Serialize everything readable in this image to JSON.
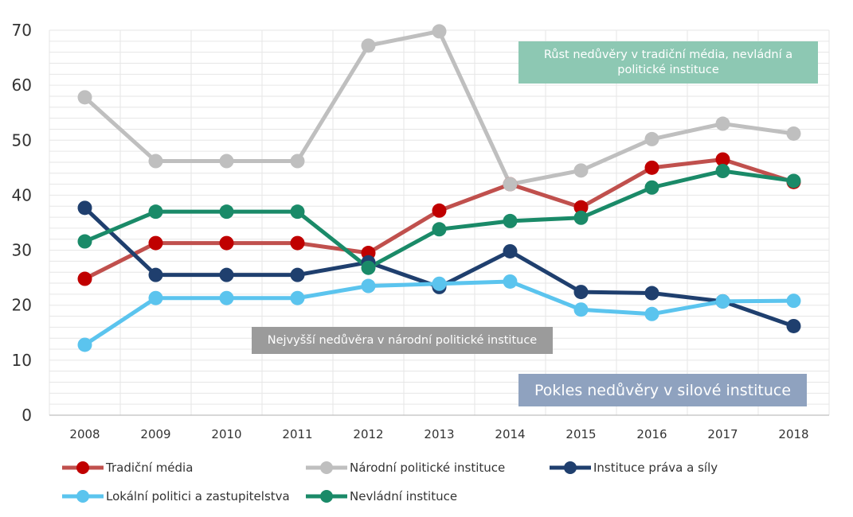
{
  "chart_data": {
    "type": "line",
    "categories": [
      "2008",
      "2009",
      "2010",
      "2011",
      "2012",
      "2013",
      "2014",
      "2015",
      "2016",
      "2017",
      "2018"
    ],
    "ylim": [
      0,
      70
    ],
    "yticks": [
      0,
      10,
      20,
      30,
      40,
      50,
      60,
      70
    ],
    "grid": true,
    "legend_position": "bottom",
    "series": [
      {
        "name": "Tradiční média",
        "color": "#c0504d",
        "marker": "#c00000",
        "values": [
          24.8,
          31.3,
          31.3,
          31.3,
          29.5,
          37.2,
          42.0,
          37.8,
          45.0,
          46.5,
          42.4
        ]
      },
      {
        "name": "Národní politické instituce",
        "color": "#bfbfbf",
        "marker": "#bfbfbf",
        "values": [
          57.8,
          46.2,
          46.2,
          46.2,
          67.2,
          69.8,
          42.0,
          44.5,
          50.2,
          53.0,
          51.2
        ]
      },
      {
        "name": "Instituce práva a síly",
        "color": "#1f3f6e",
        "marker": "#1f3f6e",
        "values": [
          37.7,
          25.5,
          25.5,
          25.5,
          27.8,
          23.3,
          29.8,
          22.4,
          22.2,
          20.7,
          16.2
        ]
      },
      {
        "name": "Lokální politici a zastupitelstva",
        "color": "#5bc4ee",
        "marker": "#5bc4ee",
        "values": [
          12.8,
          21.3,
          21.3,
          21.3,
          23.5,
          23.9,
          24.3,
          19.2,
          18.4,
          20.7,
          20.8
        ]
      },
      {
        "name": "Nevládní instituce",
        "color": "#1a8a68",
        "marker": "#1a8a68",
        "values": [
          31.6,
          37.0,
          37.0,
          37.0,
          26.8,
          33.8,
          35.3,
          35.9,
          41.4,
          44.4,
          42.6
        ]
      }
    ],
    "annotations": [
      "Růst nedůvěry v tradiční média, nevládní a politické instituce",
      "Nejvyšší nedůvěra v národní politické instituce",
      "Pokles  nedůvěry v silové instituce"
    ]
  }
}
